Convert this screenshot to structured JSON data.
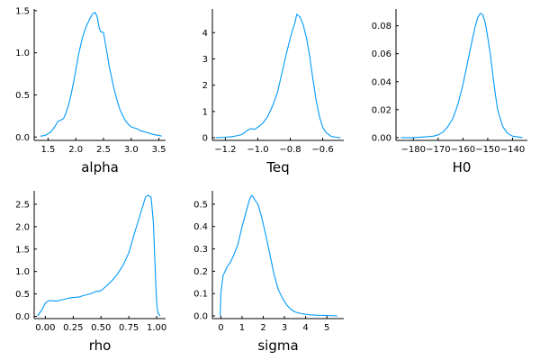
{
  "chart_data": [
    {
      "type": "line",
      "xlabel": "alpha",
      "ylabel": "",
      "xlim": [
        1.25,
        3.62
      ],
      "ylim": [
        -0.04,
        1.52
      ],
      "xticks": [
        1.5,
        2.0,
        2.5,
        3.0,
        3.5
      ],
      "xtick_labels": [
        "1.5",
        "2.0",
        "2.5",
        "3.0",
        "3.5"
      ],
      "yticks": [
        0.0,
        0.5,
        1.0,
        1.5
      ],
      "ytick_labels": [
        "0.0",
        "0.5",
        "1.0",
        "1.5"
      ],
      "grid": false,
      "color": "#009AFA",
      "x": [
        1.36,
        1.45,
        1.55,
        1.62,
        1.68,
        1.73,
        1.78,
        1.82,
        1.87,
        1.92,
        1.98,
        2.05,
        2.12,
        2.18,
        2.25,
        2.3,
        2.35,
        2.39,
        2.42,
        2.45,
        2.5,
        2.55,
        2.6,
        2.68,
        2.75,
        2.8,
        2.85,
        2.9,
        2.95,
        3.0,
        3.05,
        3.1,
        3.15,
        3.2,
        3.3,
        3.4,
        3.5,
        3.55
      ],
      "y": [
        0.01,
        0.02,
        0.06,
        0.12,
        0.19,
        0.2,
        0.22,
        0.28,
        0.38,
        0.52,
        0.72,
        0.98,
        1.18,
        1.3,
        1.4,
        1.46,
        1.48,
        1.42,
        1.3,
        1.25,
        1.24,
        1.05,
        0.85,
        0.6,
        0.42,
        0.32,
        0.25,
        0.19,
        0.15,
        0.12,
        0.11,
        0.1,
        0.08,
        0.07,
        0.05,
        0.03,
        0.02,
        0.01
      ]
    },
    {
      "type": "line",
      "xlabel": "Teq",
      "ylabel": "",
      "xlim": [
        -1.28,
        -0.47
      ],
      "ylim": [
        -0.1,
        4.9
      ],
      "xticks": [
        -1.2,
        -1.0,
        -0.8,
        -0.6
      ],
      "xtick_labels": [
        "−1.2",
        "−1.0",
        "−0.8",
        "−0.6"
      ],
      "yticks": [
        0,
        1,
        2,
        3,
        4
      ],
      "ytick_labels": [
        "0",
        "1",
        "2",
        "3",
        "4"
      ],
      "grid": false,
      "color": "#009AFA",
      "x": [
        -1.26,
        -1.2,
        -1.15,
        -1.1,
        -1.06,
        -1.04,
        -1.02,
        -1.0,
        -0.97,
        -0.94,
        -0.91,
        -0.88,
        -0.85,
        -0.82,
        -0.8,
        -0.78,
        -0.77,
        -0.76,
        -0.74,
        -0.72,
        -0.7,
        -0.68,
        -0.66,
        -0.64,
        -0.62,
        -0.6,
        -0.58,
        -0.55,
        -0.52,
        -0.49
      ],
      "y": [
        0.0,
        0.02,
        0.05,
        0.12,
        0.3,
        0.35,
        0.32,
        0.4,
        0.55,
        0.8,
        1.2,
        1.7,
        2.5,
        3.3,
        3.8,
        4.2,
        4.4,
        4.7,
        4.6,
        4.3,
        3.8,
        3.1,
        2.2,
        1.4,
        0.8,
        0.4,
        0.2,
        0.06,
        0.02,
        0.0
      ]
    },
    {
      "type": "line",
      "xlabel": "H0",
      "ylabel": "",
      "xlim": [
        -187,
        -134
      ],
      "ylim": [
        -0.002,
        0.092
      ],
      "xticks": [
        -180,
        -170,
        -160,
        -150,
        -140
      ],
      "xtick_labels": [
        "−180",
        "−170",
        "−160",
        "−150",
        "−140"
      ],
      "yticks": [
        0.0,
        0.02,
        0.04,
        0.06,
        0.08
      ],
      "ytick_labels": [
        "0.00",
        "0.02",
        "0.04",
        "0.06",
        "0.08"
      ],
      "grid": false,
      "color": "#009AFA",
      "x": [
        -185,
        -180,
        -175,
        -172,
        -170,
        -168,
        -166,
        -164,
        -162,
        -160,
        -158,
        -156,
        -155,
        -154,
        -153,
        -152,
        -151,
        -150,
        -149,
        -148,
        -147,
        -146,
        -144,
        -142,
        -140,
        -138,
        -136
      ],
      "y": [
        0.0,
        0.0,
        0.0005,
        0.001,
        0.002,
        0.004,
        0.008,
        0.014,
        0.024,
        0.038,
        0.055,
        0.072,
        0.08,
        0.086,
        0.089,
        0.088,
        0.082,
        0.072,
        0.06,
        0.046,
        0.032,
        0.02,
        0.008,
        0.003,
        0.001,
        0.0005,
        0.0
      ]
    },
    {
      "type": "line",
      "xlabel": "rho",
      "ylabel": "",
      "xlim": [
        -0.1,
        1.08
      ],
      "ylim": [
        -0.05,
        2.8
      ],
      "xticks": [
        0.0,
        0.25,
        0.5,
        0.75,
        1.0
      ],
      "xtick_labels": [
        "0.00",
        "0.25",
        "0.50",
        "0.75",
        "1.00"
      ],
      "yticks": [
        0.0,
        0.5,
        1.0,
        1.5,
        2.0,
        2.5
      ],
      "ytick_labels": [
        "0.0",
        "0.5",
        "1.0",
        "1.5",
        "2.0",
        "2.5"
      ],
      "grid": false,
      "color": "#009AFA",
      "x": [
        -0.07,
        -0.03,
        0.0,
        0.03,
        0.06,
        0.1,
        0.15,
        0.2,
        0.25,
        0.3,
        0.35,
        0.4,
        0.45,
        0.5,
        0.55,
        0.6,
        0.65,
        0.7,
        0.75,
        0.8,
        0.85,
        0.88,
        0.9,
        0.92,
        0.95,
        0.97,
        0.98,
        0.99,
        1.0,
        1.01,
        1.03
      ],
      "y": [
        0.01,
        0.15,
        0.3,
        0.35,
        0.35,
        0.34,
        0.37,
        0.4,
        0.42,
        0.43,
        0.47,
        0.5,
        0.55,
        0.57,
        0.68,
        0.8,
        0.95,
        1.15,
        1.42,
        1.85,
        2.25,
        2.5,
        2.66,
        2.7,
        2.66,
        2.1,
        1.5,
        0.8,
        0.3,
        0.08,
        0.01
      ]
    },
    {
      "type": "line",
      "xlabel": "sigma",
      "ylabel": "",
      "xlim": [
        -0.4,
        5.8
      ],
      "ylim": [
        -0.012,
        0.56
      ],
      "xticks": [
        0,
        1,
        2,
        3,
        4,
        5
      ],
      "xtick_labels": [
        "0",
        "1",
        "2",
        "3",
        "4",
        "5"
      ],
      "yticks": [
        0.0,
        0.1,
        0.2,
        0.3,
        0.4,
        0.5
      ],
      "ytick_labels": [
        "0.0",
        "0.1",
        "0.2",
        "0.3",
        "0.4",
        "0.5"
      ],
      "grid": false,
      "color": "#009AFA",
      "x": [
        -0.03,
        0.0,
        0.1,
        0.2,
        0.3,
        0.45,
        0.6,
        0.8,
        1.0,
        1.2,
        1.35,
        1.45,
        1.5,
        1.6,
        1.75,
        1.9,
        2.1,
        2.3,
        2.5,
        2.7,
        2.9,
        3.1,
        3.3,
        3.5,
        3.8,
        4.2,
        4.6,
        5.0,
        5.5
      ],
      "y": [
        0.0,
        0.1,
        0.18,
        0.2,
        0.22,
        0.24,
        0.27,
        0.32,
        0.4,
        0.47,
        0.52,
        0.54,
        0.535,
        0.52,
        0.5,
        0.45,
        0.37,
        0.28,
        0.19,
        0.12,
        0.08,
        0.05,
        0.03,
        0.018,
        0.01,
        0.005,
        0.003,
        0.002,
        0.0
      ]
    }
  ]
}
